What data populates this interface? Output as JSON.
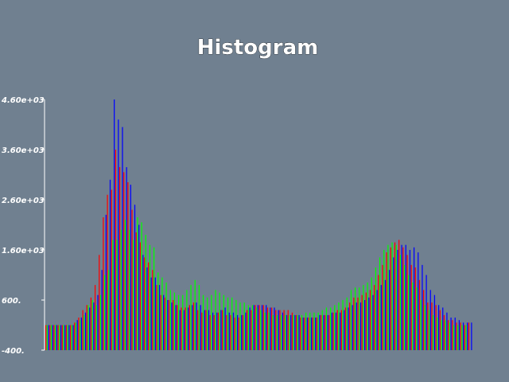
{
  "chart_data": {
    "type": "bar",
    "title": "Histogram",
    "xlabel": "",
    "ylabel": "",
    "ylim": [
      -400,
      4600
    ],
    "yticks": [
      "-400.",
      "600.",
      "1.60e+03",
      "2.60e+03",
      "3.60e+03",
      "4.60e+03"
    ],
    "ytick_values": [
      -400,
      600,
      1600,
      2600,
      3600,
      4600
    ],
    "grid": false,
    "legend": "none",
    "colors": [
      "#ff0000",
      "#00ff00",
      "#0000ff"
    ],
    "series": [
      {
        "color": "#ff0000",
        "values": [
          100,
          100,
          100,
          100,
          100,
          100,
          100,
          150,
          250,
          400,
          500,
          650,
          900,
          1500,
          2250,
          2700,
          2800,
          3600,
          3250,
          3150,
          2950,
          2400,
          1950,
          1750,
          1450,
          1350,
          1200,
          900,
          700,
          650,
          600,
          600,
          500,
          450,
          450,
          500,
          550,
          400,
          350,
          400,
          300,
          300,
          350,
          400,
          300,
          300,
          250,
          250,
          300,
          400,
          400,
          500,
          500,
          500,
          450,
          450,
          400,
          400,
          400,
          400,
          350,
          300,
          250,
          250,
          250,
          250,
          250,
          300,
          300,
          300,
          350,
          400,
          400,
          450,
          550,
          650,
          650,
          700,
          750,
          800,
          900,
          1100,
          1300,
          1550,
          1650,
          1750,
          1800,
          1650,
          1500,
          1300,
          1250,
          1000,
          800,
          550,
          550,
          500,
          400,
          300,
          200,
          200,
          150,
          150,
          100,
          150
        ]
      },
      {
        "color": "#00ff00",
        "values": [
          100,
          100,
          100,
          100,
          100,
          100,
          100,
          150,
          200,
          300,
          500,
          600,
          500,
          700,
          1100,
          1200,
          1800,
          1800,
          2000,
          2200,
          2000,
          1800,
          2250,
          2150,
          1900,
          1700,
          1650,
          1150,
          1050,
          950,
          800,
          750,
          700,
          700,
          800,
          900,
          1000,
          900,
          700,
          650,
          700,
          800,
          750,
          700,
          650,
          650,
          600,
          550,
          550,
          500,
          500,
          450,
          400,
          350,
          350,
          300,
          300,
          300,
          300,
          300,
          300,
          300,
          300,
          350,
          350,
          350,
          350,
          400,
          450,
          450,
          500,
          550,
          600,
          650,
          800,
          850,
          850,
          900,
          950,
          1050,
          1250,
          1450,
          1600,
          1700,
          1750,
          1700,
          1500,
          1300,
          1100,
          950,
          850,
          600,
          500,
          400,
          300,
          250,
          200,
          200,
          150,
          100,
          100,
          100,
          100
        ]
      },
      {
        "color": "#0000ff",
        "values": [
          100,
          100,
          100,
          100,
          100,
          100,
          100,
          200,
          250,
          350,
          450,
          550,
          700,
          1200,
          2300,
          3000,
          4600,
          4200,
          4050,
          3250,
          2900,
          2500,
          2100,
          1500,
          1250,
          1050,
          1050,
          900,
          700,
          600,
          550,
          500,
          400,
          400,
          450,
          500,
          550,
          500,
          400,
          400,
          350,
          350,
          400,
          450,
          350,
          350,
          300,
          300,
          350,
          450,
          500,
          500,
          500,
          500,
          450,
          450,
          400,
          350,
          300,
          300,
          300,
          300,
          250,
          250,
          250,
          250,
          300,
          300,
          300,
          350,
          350,
          350,
          400,
          450,
          500,
          550,
          550,
          600,
          650,
          700,
          800,
          900,
          1000,
          1200,
          1450,
          1600,
          1700,
          1700,
          1600,
          1650,
          1550,
          1300,
          1100,
          800,
          700,
          500,
          450,
          350,
          250,
          250,
          200,
          150,
          150,
          150
        ]
      }
    ]
  }
}
